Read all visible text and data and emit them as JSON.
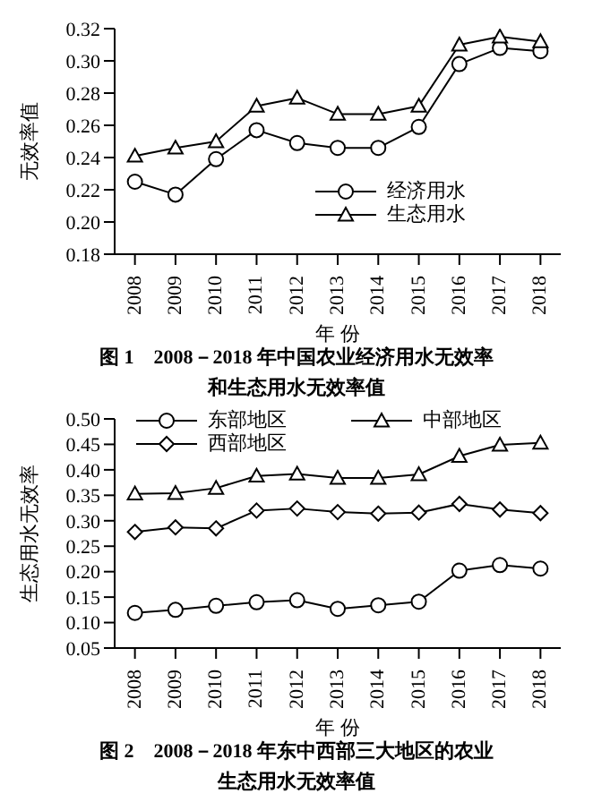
{
  "chart_data": [
    {
      "type": "line",
      "title": "图 1　2008－2018 年中国农业经济用水无效率和生态用水无效率值",
      "xlabel": "年 份",
      "ylabel": "无效率值",
      "categories": [
        "2008",
        "2009",
        "2010",
        "2011",
        "2012",
        "2013",
        "2014",
        "2015",
        "2016",
        "2017",
        "2018"
      ],
      "series": [
        {
          "name": "经济用水",
          "color": "#000000",
          "marker": "circle",
          "values": [
            0.225,
            0.217,
            0.239,
            0.257,
            0.249,
            0.246,
            0.246,
            0.259,
            0.298,
            0.308,
            0.306
          ]
        },
        {
          "name": "生态用水",
          "color": "#000000",
          "marker": "triangle",
          "values": [
            0.241,
            0.246,
            0.25,
            0.272,
            0.277,
            0.267,
            0.267,
            0.272,
            0.31,
            0.315,
            0.312
          ]
        }
      ],
      "ylim": [
        0.18,
        0.32
      ],
      "yticks": [
        0.18,
        {
          "value": 0.2,
          "label": "0.20"
        },
        0.22,
        0.24,
        0.26,
        0.28,
        {
          "value": 0.3,
          "label": "0.30"
        },
        0.32
      ],
      "grid": false,
      "legend": "bottom right",
      "line_style": "solid"
    },
    {
      "type": "line",
      "title": "图 2　2008－2018 年东中西部三大地区的农业生态用水无效率值",
      "xlabel": "年 份",
      "ylabel": "生态用水无效率",
      "categories": [
        "2008",
        "2009",
        "2010",
        "2011",
        "2012",
        "2013",
        "2014",
        "2015",
        "2016",
        "2017",
        "2018"
      ],
      "series": [
        {
          "name": "东部地区",
          "color": "#000000",
          "marker": "circle",
          "values": [
            0.119,
            0.125,
            0.133,
            0.14,
            0.144,
            0.127,
            0.134,
            0.141,
            0.202,
            0.213,
            0.206
          ]
        },
        {
          "name": "中部地区",
          "color": "#000000",
          "marker": "triangle",
          "values": [
            0.353,
            0.354,
            0.364,
            0.388,
            0.392,
            0.384,
            0.384,
            0.391,
            0.427,
            0.449,
            0.453
          ]
        },
        {
          "name": "西部地区",
          "color": "#000000",
          "marker": "diamond",
          "values": [
            0.278,
            0.287,
            0.285,
            0.32,
            0.324,
            0.317,
            0.314,
            0.316,
            0.333,
            0.322,
            0.315
          ]
        }
      ],
      "ylim": [
        0.05,
        0.5
      ],
      "yticks": [
        0.05,
        {
          "value": 0.1,
          "label": "0.10"
        },
        0.15,
        {
          "value": 0.2,
          "label": "0.20"
        },
        0.25,
        {
          "value": 0.3,
          "label": "0.30"
        },
        0.35,
        {
          "value": 0.4,
          "label": "0.40"
        },
        0.45,
        {
          "value": 0.5,
          "label": "0.50"
        }
      ],
      "grid": false,
      "legend": "top",
      "line_style": "solid"
    }
  ]
}
